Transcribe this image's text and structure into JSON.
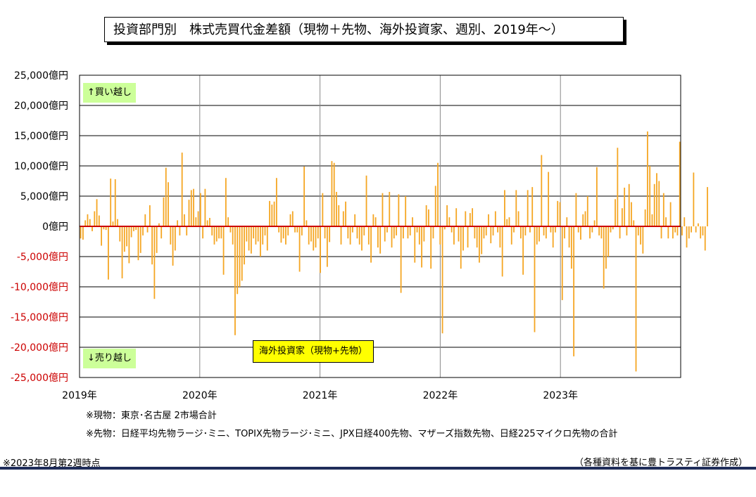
{
  "header": {
    "title": "投資部門別　株式売買代金差額（現物＋先物、海外投資家、週別、2019年～）"
  },
  "labels": {
    "buy_over": "↑買い越し",
    "sell_over": "↓売り越し",
    "series_box": "海外投資家（現物+先物）"
  },
  "notes": {
    "spot": "※現物：東京･名古屋 2市場合計",
    "futures": "※先物：日経平均先物ラージ･ミニ、TOPIX先物ラージ･ミニ、JPX日経400先物、マザーズ指数先物、日経225マイクロ先物の合計",
    "as_of": "※2023年8月第2週時点",
    "source": "（各種資料を基に豊トラスティ証券作成）"
  },
  "colors": {
    "bar": "#f5a623",
    "zero_line": "#cc0000",
    "grid": "#000000",
    "buy_badge": "#ccff99",
    "series_badge": "#ffff00",
    "footer_line": "#1f2d5a"
  },
  "chart_data": {
    "type": "bar",
    "ylim": [
      -25000,
      25000
    ],
    "yticks": [
      25000,
      20000,
      15000,
      10000,
      5000,
      0,
      -5000,
      -10000,
      -15000,
      -20000,
      -25000
    ],
    "ytick_labels": [
      "25,000億円",
      "20,000億円",
      "15,000億円",
      "10,000億円",
      "5,000億円",
      "0億円",
      "-5,000億円",
      "-10,000億円",
      "-15,000億円",
      "-20,000億円",
      "-25,000億円"
    ],
    "xlim": [
      2019.0,
      2024.0
    ],
    "xticks": [
      2019,
      2020,
      2021,
      2022,
      2023
    ],
    "xtick_labels": [
      "2019年",
      "2020年",
      "2021年",
      "2022年",
      "2023年"
    ],
    "grid": true,
    "series": [
      {
        "values": [
          -2000,
          -2200,
          1000,
          2000,
          1200,
          -800,
          2500,
          4500,
          1800,
          -3200,
          -500,
          -600,
          -8800,
          7900,
          800,
          7800,
          1200,
          -2500,
          -8600,
          -4200,
          -3300,
          -6100,
          -1800,
          -800,
          -600,
          -5600,
          -4400,
          -1500,
          2000,
          -1000,
          3500,
          -6300,
          -12000,
          -4400,
          500,
          -2000,
          4800,
          9700,
          7300,
          -3000,
          -6500,
          -4000,
          1000,
          -1500,
          12200,
          2000,
          -1500,
          4400,
          6000,
          6200,
          1500,
          2500,
          5500,
          -2000,
          6200,
          1000,
          1400,
          -1500,
          -3000,
          -2500,
          -2000,
          -2000,
          -8000,
          8000,
          1500,
          -1000,
          -3000,
          -18000,
          -11200,
          -10000,
          -9000,
          -6300,
          -2500,
          -4000,
          -4500,
          -2000,
          -3000,
          -2500,
          -5000,
          -3000,
          -1500,
          -4000,
          4200,
          3600,
          4100,
          8000,
          -1000,
          -2700,
          -2000,
          -3000,
          -1500,
          2000,
          2500,
          -1000,
          -1000,
          -7500,
          -1500,
          9900,
          1000,
          -3000,
          -2500,
          -4000,
          -3500,
          -2000,
          -7700,
          5500,
          -2000,
          -6700,
          -2600,
          10800,
          10500,
          5700,
          3500,
          -3000,
          2500,
          4100,
          -2000,
          -3000,
          -1000,
          2000,
          -2000,
          -3000,
          -4000,
          -1500,
          8400,
          -3000,
          -6000,
          2000,
          1500,
          -3500,
          -4500,
          5500,
          -2500,
          -1000,
          5700,
          -3500,
          -2000,
          -1500,
          5300,
          -11000,
          -2000,
          5000,
          -2000,
          -1500,
          1500,
          -6000,
          -1000,
          -3000,
          -6800,
          -2500,
          3500,
          2800,
          -7000,
          -2000,
          6700,
          10500,
          -3000,
          -17700,
          -500,
          3500,
          1500,
          -1000,
          -3000,
          3000,
          -2500,
          -7000,
          -4000,
          2500,
          -3500,
          2200,
          3000,
          -2000,
          -3500,
          -6000,
          -4600,
          -2000,
          -1500,
          2000,
          -2800,
          -1500,
          2500,
          -1000,
          -3500,
          -8300,
          6000,
          1200,
          1500,
          -3000,
          -1000,
          6000,
          2500,
          -2000,
          -8000,
          -1500,
          6000,
          -1000,
          6500,
          -17500,
          -3000,
          -2500,
          11800,
          -1500,
          -2000,
          9000,
          -1000,
          -3500,
          -1000,
          4200,
          4000,
          -12200,
          -2000,
          1500,
          -3500,
          -7000,
          -21500,
          5500,
          -1000,
          -2200,
          2000,
          2500,
          5000,
          -2000,
          -1000,
          1000,
          9800,
          -1500,
          -2000,
          -10300,
          -7000,
          -5000,
          -1000,
          -500,
          4500,
          13000,
          -2000,
          3000,
          6400,
          -1500,
          7000,
          4000,
          1000,
          -24000,
          -1500,
          -3000,
          -4500,
          2800,
          15700,
          10000,
          2000,
          7000,
          8800,
          7500,
          -2000,
          5500,
          1500,
          -2000,
          4000,
          -2000,
          -1000,
          -1500,
          14000,
          -1500,
          1500,
          -3500,
          -2000,
          -1000,
          8900,
          -1000,
          500,
          -2000,
          -1500,
          -4000,
          6500
        ],
        "color": "#f5a623"
      }
    ]
  }
}
